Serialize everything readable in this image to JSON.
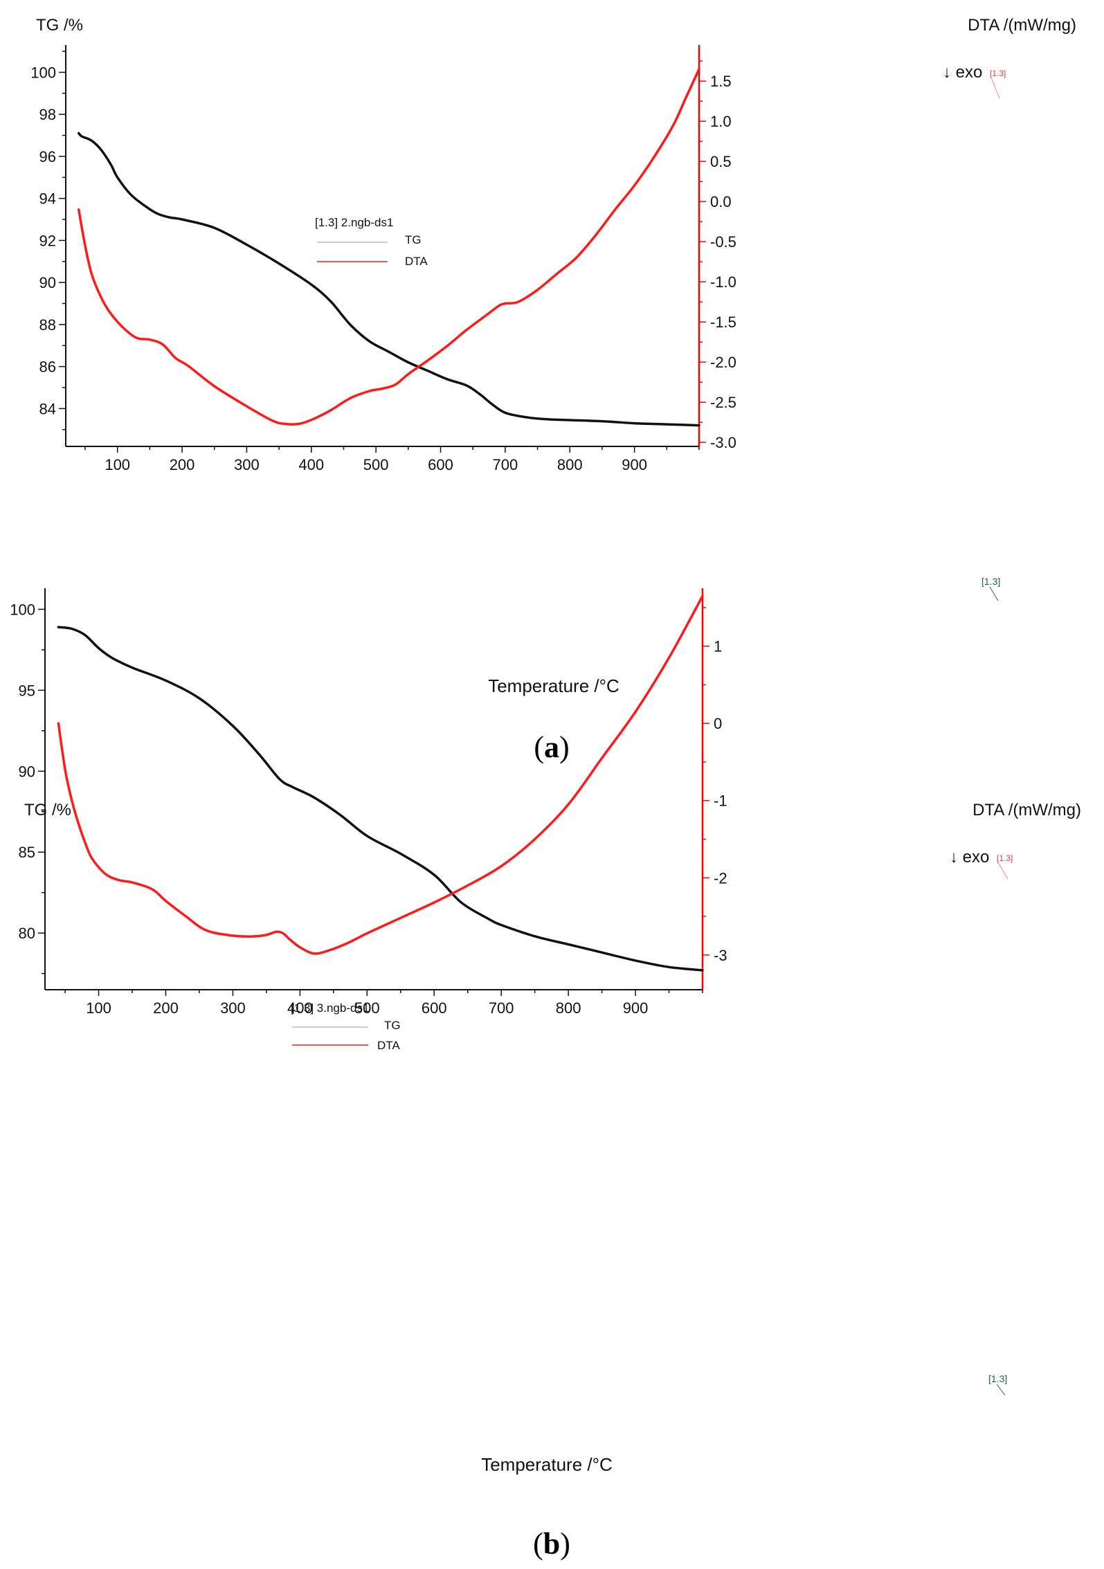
{
  "figure": {
    "labels": [
      {
        "open": "(",
        "letter": "a",
        "close": ")"
      },
      {
        "open": "(",
        "letter": "b",
        "close": ")"
      }
    ]
  },
  "colors": {
    "tg": "#111111",
    "dta": "#ff1a1a",
    "axis": "#111111",
    "dta_axis": "#ff0000"
  },
  "chart_data": [
    {
      "type": "line",
      "panel": "a",
      "xlabel": "Temperature /°C",
      "ylabel_left": "TG /%",
      "ylabel_right": "DTA /(mW/mg)",
      "xlim": [
        20,
        1000
      ],
      "ylim_left": [
        82.2,
        101.3
      ],
      "ylim_right": [
        -3.05,
        1.95
      ],
      "x_ticks": [
        100,
        200,
        300,
        400,
        500,
        600,
        700,
        800,
        900
      ],
      "y_ticks_left": [
        84,
        86,
        88,
        90,
        92,
        94,
        96,
        98,
        100
      ],
      "y_ticks_right": [
        -3.0,
        -2.5,
        -2.0,
        -1.5,
        -1.0,
        -0.5,
        0.0,
        0.5,
        1.0,
        1.5
      ],
      "y_tick_labels_right": [
        "-3.0",
        "-2.5",
        "-2.0",
        "-1.5",
        "-1.0",
        "-0.5",
        "0.0",
        "0.5",
        "1.0",
        "1.5"
      ],
      "legend": {
        "sample": "[1.3] 2.ngb-ds1",
        "entries": [
          "TG",
          "DTA"
        ]
      },
      "annotations": {
        "exo": "↓ exo",
        "tg_end": "[1.3]",
        "dta_end": "[1.3]"
      },
      "series": [
        {
          "name": "TG",
          "axis": "left",
          "x": [
            40,
            45,
            60,
            75,
            90,
            100,
            120,
            140,
            160,
            180,
            200,
            250,
            300,
            350,
            400,
            430,
            460,
            490,
            520,
            550,
            580,
            610,
            640,
            660,
            680,
            700,
            730,
            760,
            800,
            850,
            900,
            950,
            1000
          ],
          "y": [
            97.1,
            96.95,
            96.75,
            96.3,
            95.6,
            95.0,
            94.2,
            93.7,
            93.3,
            93.1,
            93.0,
            92.6,
            91.8,
            90.9,
            89.9,
            89.1,
            88.0,
            87.2,
            86.7,
            86.2,
            85.8,
            85.4,
            85.1,
            84.7,
            84.2,
            83.8,
            83.6,
            83.5,
            83.45,
            83.4,
            83.3,
            83.25,
            83.2
          ]
        },
        {
          "name": "DTA",
          "axis": "right",
          "x": [
            40,
            50,
            60,
            75,
            90,
            110,
            130,
            150,
            170,
            190,
            210,
            250,
            300,
            340,
            360,
            380,
            400,
            430,
            460,
            490,
            510,
            530,
            550,
            580,
            610,
            640,
            670,
            690,
            700,
            720,
            750,
            780,
            810,
            840,
            870,
            900,
            930,
            960,
            980,
            1000
          ],
          "y": [
            -0.1,
            -0.55,
            -0.9,
            -1.2,
            -1.4,
            -1.58,
            -1.7,
            -1.72,
            -1.78,
            -1.95,
            -2.05,
            -2.3,
            -2.55,
            -2.73,
            -2.77,
            -2.77,
            -2.72,
            -2.6,
            -2.45,
            -2.36,
            -2.33,
            -2.28,
            -2.15,
            -1.98,
            -1.8,
            -1.6,
            -1.42,
            -1.3,
            -1.27,
            -1.25,
            -1.1,
            -0.9,
            -0.7,
            -0.42,
            -0.1,
            0.2,
            0.55,
            0.95,
            1.3,
            1.65
          ]
        }
      ]
    },
    {
      "type": "line",
      "panel": "b",
      "xlabel": "Temperature /°C",
      "ylabel_left": "TG /%",
      "ylabel_right": "DTA /(mW/mg)",
      "xlim": [
        20,
        1000
      ],
      "ylim_left": [
        76.5,
        101.3
      ],
      "ylim_right": [
        -3.45,
        1.75
      ],
      "x_ticks": [
        100,
        200,
        300,
        400,
        500,
        600,
        700,
        800,
        900
      ],
      "y_ticks_left": [
        80,
        85,
        90,
        95,
        100
      ],
      "y_ticks_right": [
        -3,
        -2,
        -1,
        0,
        1
      ],
      "y_tick_labels_right": [
        "-3",
        "-2",
        "-1",
        "0",
        "1"
      ],
      "legend": {
        "sample": "[1.3] 3.ngb-ds1",
        "entries": [
          "TG",
          "DTA"
        ]
      },
      "annotations": {
        "exo": "↓ exo",
        "tg_end": "[1.3]",
        "dta_end": "[1.3]"
      },
      "series": [
        {
          "name": "TG",
          "axis": "left",
          "x": [
            40,
            60,
            80,
            100,
            120,
            150,
            200,
            250,
            300,
            340,
            370,
            390,
            420,
            460,
            500,
            550,
            600,
            640,
            680,
            700,
            750,
            800,
            850,
            900,
            950,
            1000
          ],
          "y": [
            98.9,
            98.8,
            98.4,
            97.6,
            97.0,
            96.4,
            95.6,
            94.5,
            92.8,
            91.0,
            89.5,
            89.0,
            88.4,
            87.3,
            86.0,
            84.9,
            83.6,
            81.9,
            80.9,
            80.5,
            79.8,
            79.3,
            78.8,
            78.3,
            77.9,
            77.7
          ]
        },
        {
          "name": "DTA",
          "axis": "right",
          "x": [
            40,
            50,
            60,
            70,
            80,
            90,
            110,
            130,
            150,
            180,
            200,
            230,
            260,
            300,
            330,
            350,
            365,
            375,
            385,
            400,
            420,
            440,
            470,
            500,
            550,
            600,
            650,
            700,
            750,
            800,
            850,
            900,
            950,
            1000
          ],
          "y": [
            0.0,
            -0.6,
            -1.0,
            -1.3,
            -1.55,
            -1.75,
            -1.95,
            -2.03,
            -2.06,
            -2.15,
            -2.3,
            -2.5,
            -2.68,
            -2.75,
            -2.76,
            -2.74,
            -2.7,
            -2.72,
            -2.8,
            -2.9,
            -2.98,
            -2.95,
            -2.85,
            -2.72,
            -2.52,
            -2.32,
            -2.1,
            -1.85,
            -1.5,
            -1.05,
            -0.45,
            0.15,
            0.85,
            1.65
          ]
        }
      ]
    }
  ]
}
